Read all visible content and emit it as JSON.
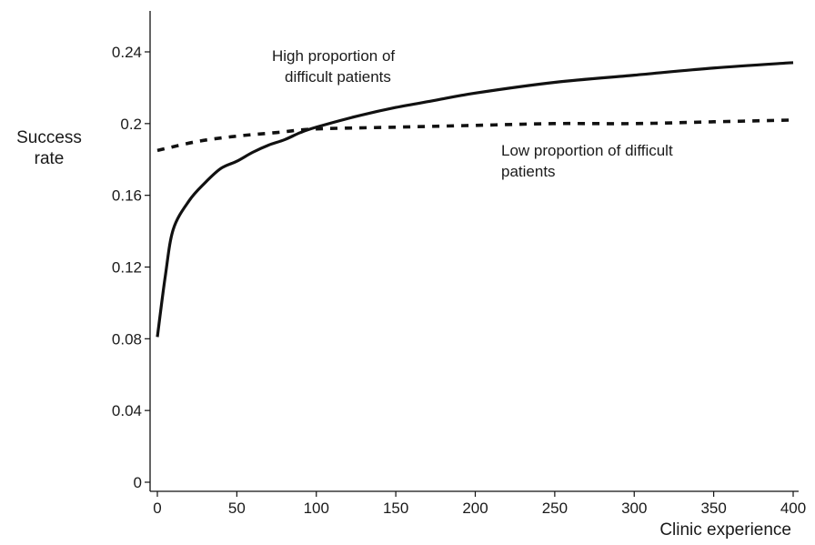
{
  "chart_data": {
    "type": "line",
    "title": "",
    "xlabel": "Clinic experience",
    "ylabel_lines": [
      "Success",
      "rate"
    ],
    "xlim": [
      0,
      400
    ],
    "ylim": [
      0,
      0.24
    ],
    "xticks": [
      0,
      50,
      100,
      150,
      200,
      250,
      300,
      350,
      400
    ],
    "yticks": [
      0,
      0.04,
      0.08,
      0.12,
      0.16,
      0.2,
      0.24
    ],
    "ytick_labels": [
      "0",
      "0.04",
      "0.08",
      "0.12",
      "0.16",
      "0.2",
      "0.24"
    ],
    "grid": false,
    "series": [
      {
        "style": "solid",
        "color": "#111111",
        "x": [
          0,
          5,
          10,
          20,
          30,
          40,
          50,
          60,
          70,
          80,
          90,
          100,
          125,
          150,
          175,
          200,
          250,
          300,
          350,
          400
        ],
        "y": [
          0.081,
          0.115,
          0.141,
          0.157,
          0.167,
          0.175,
          0.179,
          0.184,
          0.188,
          0.191,
          0.195,
          0.198,
          0.204,
          0.209,
          0.213,
          0.217,
          0.223,
          0.227,
          0.231,
          0.234
        ]
      },
      {
        "style": "dashed",
        "color": "#111111",
        "x": [
          0,
          25,
          50,
          75,
          100,
          150,
          200,
          250,
          300,
          350,
          400
        ],
        "y": [
          0.185,
          0.19,
          0.193,
          0.195,
          0.197,
          0.198,
          0.199,
          0.2,
          0.2,
          0.201,
          0.202
        ]
      }
    ],
    "annotations": [
      {
        "lines": [
          "High proportion of",
          "difficult patients"
        ],
        "series_index": 0
      },
      {
        "lines": [
          "Low proportion of difficult",
          "patients"
        ],
        "series_index": 1
      }
    ]
  }
}
